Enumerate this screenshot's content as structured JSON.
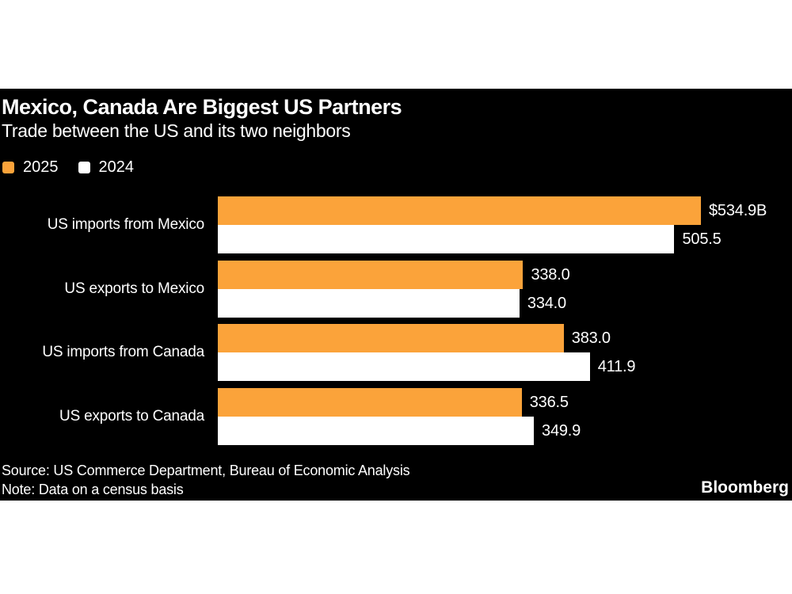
{
  "header": {
    "title": "Mexico, Canada Are Biggest US Partners",
    "subtitle": "Trade between the US and its two neighbors"
  },
  "legend": {
    "items": [
      {
        "label": "2025",
        "color": "#FBA33A"
      },
      {
        "label": "2024",
        "color": "#FFFFFF"
      }
    ]
  },
  "chart_data": {
    "type": "bar",
    "orientation": "horizontal",
    "title": "Mexico, Canada Are Biggest US Partners",
    "subtitle": "Trade between the US and its two neighbors",
    "categories": [
      "US imports from Mexico",
      "US exports to Mexico",
      "US imports from Canada",
      "US exports to Canada"
    ],
    "series": [
      {
        "name": "2025",
        "color": "#FBA33A",
        "values": [
          534.9,
          338.0,
          383.0,
          336.5
        ],
        "value_labels": [
          "$534.9B",
          "338.0",
          "383.0",
          "336.5"
        ]
      },
      {
        "name": "2024",
        "color": "#FFFFFF",
        "values": [
          505.5,
          334.0,
          411.9,
          349.9
        ],
        "value_labels": [
          "505.5",
          "334.0",
          "411.9",
          "349.9"
        ]
      }
    ],
    "xlim": [
      0,
      534.9
    ],
    "grid": false,
    "legend_position": "top-left"
  },
  "footer": {
    "source": "Source: US Commerce Department, Bureau of Economic Analysis",
    "note": "Note: Data on a census basis",
    "brand": "Bloomberg"
  },
  "colors": {
    "page_background": "#FFFFFF",
    "panel_background": "#000000",
    "text": "#FFFFFF",
    "series_2025": "#FBA33A",
    "series_2024": "#FFFFFF"
  }
}
